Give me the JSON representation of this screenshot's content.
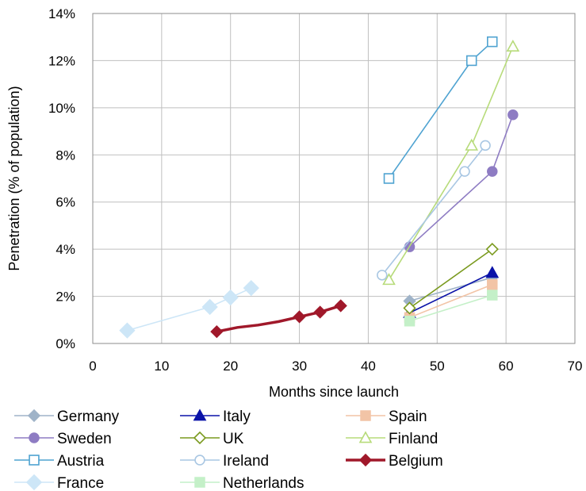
{
  "chart_data": {
    "type": "line",
    "xlabel": "Months since launch",
    "ylabel": "Penetration (% of population)",
    "xlim": [
      0,
      70
    ],
    "ylim": [
      0,
      14
    ],
    "xticks": [
      "0",
      "10",
      "20",
      "30",
      "40",
      "50",
      "60",
      "70"
    ],
    "yticks": [
      "0%",
      "2%",
      "4%",
      "6%",
      "8%",
      "10%",
      "12%",
      "14%"
    ],
    "grid": true,
    "legend_position": "bottom",
    "series": [
      {
        "name": "Germany",
        "color": "#9fb3c8",
        "marker": "diamond",
        "fill": true,
        "points": [
          [
            46,
            1.8
          ],
          [
            58,
            2.8
          ]
        ]
      },
      {
        "name": "Italy",
        "color": "#0a12a8",
        "marker": "triangle",
        "fill": true,
        "points": [
          [
            46,
            1.3
          ],
          [
            58,
            3.0
          ]
        ]
      },
      {
        "name": "Spain",
        "color": "#f2c4a6",
        "marker": "square",
        "fill": true,
        "points": [
          [
            46,
            1.1
          ],
          [
            58,
            2.5
          ]
        ]
      },
      {
        "name": "Sweden",
        "color": "#8e7cc3",
        "marker": "circle",
        "fill": true,
        "points": [
          [
            46,
            4.1
          ],
          [
            58,
            7.3
          ],
          [
            61,
            9.7
          ]
        ]
      },
      {
        "name": "UK",
        "color": "#7a9a1e",
        "marker": "diamond",
        "fill": false,
        "points": [
          [
            46,
            1.5
          ],
          [
            58,
            4.0
          ]
        ]
      },
      {
        "name": "Finland",
        "color": "#b7db7a",
        "marker": "triangle",
        "fill": false,
        "points": [
          [
            43,
            2.7
          ],
          [
            55,
            8.4
          ],
          [
            61,
            12.6
          ]
        ]
      },
      {
        "name": "Austria",
        "color": "#4fa3d1",
        "marker": "square",
        "fill": false,
        "points": [
          [
            43,
            7.0
          ],
          [
            55,
            12.0
          ],
          [
            58,
            12.8
          ]
        ]
      },
      {
        "name": "Ireland",
        "color": "#a9c7e3",
        "marker": "circle",
        "fill": false,
        "points": [
          [
            42,
            2.9
          ],
          [
            54,
            7.3
          ],
          [
            57,
            8.4
          ]
        ]
      },
      {
        "name": "Belgium",
        "color": "#a0182a",
        "marker": "diamond",
        "fill": true,
        "points": [
          [
            18,
            0.5
          ],
          [
            21,
            0.68
          ],
          [
            24,
            0.78
          ],
          [
            27,
            0.93
          ],
          [
            30,
            1.13
          ],
          [
            33,
            1.33
          ],
          [
            36,
            1.6
          ]
        ]
      },
      {
        "name": "France",
        "color": "#cde6f7",
        "marker": "diamond",
        "fill": true,
        "points": [
          [
            5,
            0.55
          ],
          [
            17,
            1.55
          ],
          [
            20,
            1.95
          ],
          [
            23,
            2.35
          ]
        ]
      },
      {
        "name": "Netherlands",
        "color": "#c4f0c8",
        "marker": "square",
        "fill": true,
        "points": [
          [
            46,
            0.95
          ],
          [
            58,
            2.05
          ]
        ]
      }
    ]
  }
}
